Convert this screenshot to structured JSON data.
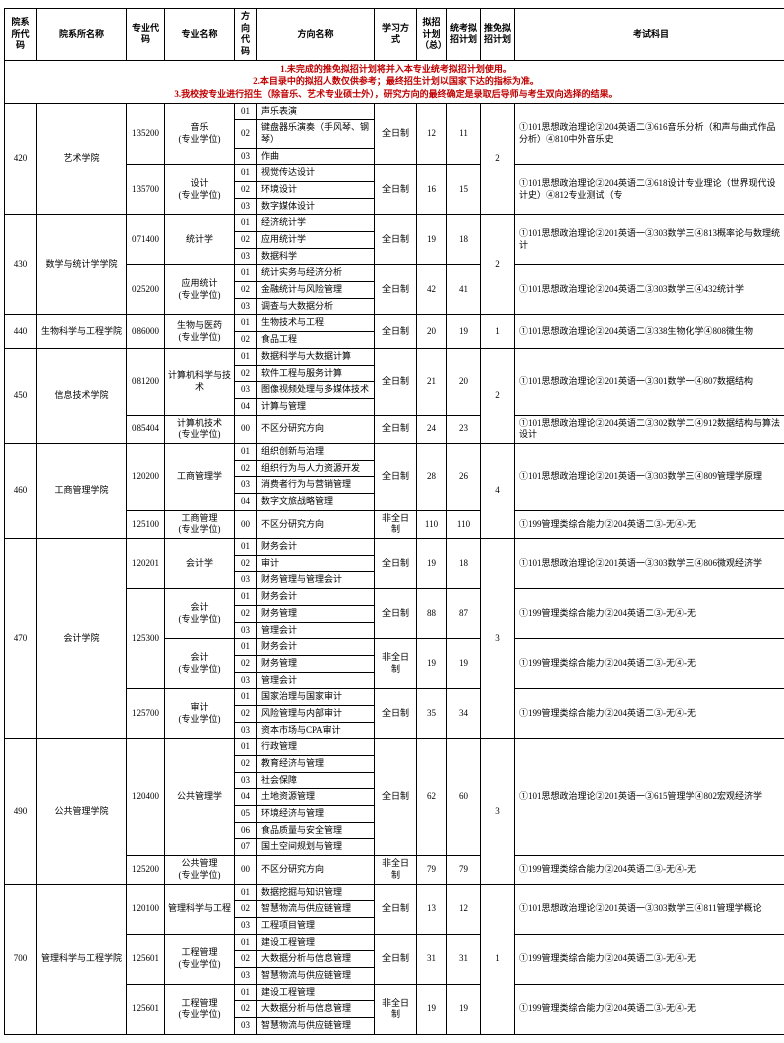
{
  "headers": {
    "h1": "院系所代码",
    "h2": "院系所名称",
    "h3": "专业代码",
    "h4": "专业名称",
    "h5": "方向代码",
    "h6": "方向名称",
    "h7": "学习方式",
    "h8": "拟招计划（总）",
    "h9": "统考拟招计划",
    "h10": "推免拟招计划",
    "h11": "考试科目"
  },
  "notes": {
    "n1": "1.未完成的推免拟招计划将并入本专业统考拟招计划使用。",
    "n2": "2.本目录中的拟招人数仅供参考；最终招生计划以国家下达的指标为准。",
    "n3": "3.我校按专业进行招生（除音乐、艺术专业硕士外），研究方向的最终确定是录取后导师与考生双向选择的结果。"
  },
  "d": {
    "r420": {
      "code": "420",
      "name": "艺术学院",
      "rec": "2",
      "m1": {
        "code": "135200",
        "name": "音乐\n(专业学位)",
        "mode": "全日制",
        "plan": "12",
        "plan2": "11",
        "exam": "①101思想政治理论②204英语二③616音乐分析（和声与曲式作品分析）④810中外音乐史",
        "d": [
          [
            "01",
            "声乐表演"
          ],
          [
            "02",
            "键盘器乐演奏（手风琴、钢琴）"
          ],
          [
            "03",
            "作曲"
          ]
        ]
      },
      "m2": {
        "code": "135700",
        "name": "设计\n(专业学位)",
        "mode": "全日制",
        "plan": "16",
        "plan2": "15",
        "exam": "①101思想政治理论②204英语二③618设计专业理论（世界现代设计史）④812专业测试（专",
        "d": [
          [
            "01",
            "视觉传达设计"
          ],
          [
            "02",
            "环境设计"
          ],
          [
            "03",
            "数字媒体设计"
          ]
        ]
      }
    },
    "r430": {
      "code": "430",
      "name": "数学与统计学学院",
      "rec": "2",
      "m1": {
        "code": "071400",
        "name": "统计学",
        "mode": "全日制",
        "plan": "19",
        "plan2": "18",
        "exam": "①101思想政治理论②201英语一③303数学三④813概率论与数理统计",
        "d": [
          [
            "01",
            "经济统计学"
          ],
          [
            "02",
            "应用统计学"
          ],
          [
            "03",
            "数据科学"
          ]
        ]
      },
      "m2": {
        "code": "025200",
        "name": "应用统计\n(专业学位)",
        "mode": "全日制",
        "plan": "42",
        "plan2": "41",
        "exam": "①101思想政治理论②204英语二③303数学三④432统计学",
        "d": [
          [
            "01",
            "统计实务与经济分析"
          ],
          [
            "02",
            "金融统计与风险管理"
          ],
          [
            "03",
            "调查与大数据分析"
          ]
        ]
      }
    },
    "r440": {
      "code": "440",
      "name": "生物科学与工程学院",
      "rec": "1",
      "m1": {
        "code": "086000",
        "name": "生物与医药\n(专业学位)",
        "mode": "全日制",
        "plan": "20",
        "plan2": "19",
        "exam": "①101思想政治理论②204英语二③338生物化学④808微生物",
        "d": [
          [
            "01",
            "生物技术与工程"
          ],
          [
            "02",
            "食品工程"
          ]
        ]
      }
    },
    "r450": {
      "code": "450",
      "name": "信息技术学院",
      "rec": "2",
      "m1": {
        "code": "081200",
        "name": "计算机科学与技术",
        "mode": "全日制",
        "plan": "21",
        "plan2": "20",
        "exam": "①101思想政治理论②201英语一③301数学一④807数据结构",
        "d": [
          [
            "01",
            "数据科学与大数据计算"
          ],
          [
            "02",
            "软件工程与服务计算"
          ],
          [
            "03",
            "图像视频处理与多媒体技术"
          ],
          [
            "04",
            "计算与管理"
          ]
        ]
      },
      "m2": {
        "code": "085404",
        "name": "计算机技术\n(专业学位)",
        "mode": "全日制",
        "plan": "24",
        "plan2": "23",
        "exam": "①101思想政治理论②204英语二③302数学二④912数据结构与算法设计",
        "d": [
          [
            "00",
            "不区分研究方向"
          ]
        ]
      }
    },
    "r460": {
      "code": "460",
      "name": "工商管理学院",
      "rec": "4",
      "m1": {
        "code": "120200",
        "name": "工商管理学",
        "mode": "全日制",
        "plan": "28",
        "plan2": "26",
        "exam": "①101思想政治理论②201英语一③303数学三④809管理学原理",
        "d": [
          [
            "01",
            "组织创新与治理"
          ],
          [
            "02",
            "组织行为与人力资源开发"
          ],
          [
            "03",
            "消费者行为与营销管理"
          ],
          [
            "04",
            "数字文旅战略管理"
          ]
        ]
      },
      "m2": {
        "code": "125100",
        "name": "工商管理\n(专业学位)",
        "mode": "非全日制",
        "plan": "110",
        "plan2": "110",
        "exam": "①199管理类综合能力②204英语二③-无④-无",
        "d": [
          [
            "00",
            "不区分研究方向"
          ]
        ]
      }
    },
    "r470": {
      "code": "470",
      "name": "会计学院",
      "rec": "3",
      "m1": {
        "code": "120201",
        "name": "会计学",
        "mode": "全日制",
        "plan": "19",
        "plan2": "18",
        "exam": "①101思想政治理论②201英语一③303数学三④806微观经济学",
        "d": [
          [
            "01",
            "财务会计"
          ],
          [
            "02",
            "审计"
          ],
          [
            "03",
            "财务管理与管理会计"
          ]
        ]
      },
      "m2": {
        "code": "125300",
        "name": "会计\n(专业学位)",
        "mode": "全日制",
        "plan": "88",
        "plan2": "87",
        "exam": "①199管理类综合能力②204英语二③-无④-无",
        "d": [
          [
            "01",
            "财务会计"
          ],
          [
            "02",
            "财务管理"
          ],
          [
            "03",
            "管理会计"
          ]
        ]
      },
      "m3": {
        "code": "",
        "name": "会计\n(专业学位)",
        "mode": "非全日制",
        "plan": "19",
        "plan2": "19",
        "exam": "①199管理类综合能力②204英语二③-无④-无",
        "d": [
          [
            "01",
            "财务会计"
          ],
          [
            "02",
            "财务管理"
          ],
          [
            "03",
            "管理会计"
          ]
        ]
      },
      "m4": {
        "code": "125700",
        "name": "审计\n(专业学位)",
        "mode": "全日制",
        "plan": "35",
        "plan2": "34",
        "exam": "①199管理类综合能力②204英语二③-无④-无",
        "d": [
          [
            "01",
            "国家治理与国家审计"
          ],
          [
            "02",
            "风险管理与内部审计"
          ],
          [
            "03",
            "资本市场与CPA审计"
          ]
        ]
      }
    },
    "r490": {
      "code": "490",
      "name": "公共管理学院",
      "rec": "3",
      "m1": {
        "code": "120400",
        "name": "公共管理学",
        "mode": "全日制",
        "plan": "62",
        "plan2": "60",
        "exam": "①101思想政治理论②201英语一③615管理学④802宏观经济学",
        "d": [
          [
            "01",
            "行政管理"
          ],
          [
            "02",
            "教育经济与管理"
          ],
          [
            "03",
            "社会保障"
          ],
          [
            "04",
            "土地资源管理"
          ],
          [
            "05",
            "环境经济与管理"
          ],
          [
            "06",
            "食品质量与安全管理"
          ],
          [
            "07",
            "国土空间规划与管理"
          ]
        ]
      },
      "m2": {
        "code": "125200",
        "name": "公共管理\n(专业学位)",
        "mode": "非全日制",
        "plan": "79",
        "plan2": "79",
        "exam": "①199管理类综合能力②204英语二③-无④-无",
        "d": [
          [
            "00",
            "不区分研究方向"
          ]
        ]
      }
    },
    "r700": {
      "code": "700",
      "name": "管理科学与工程学院",
      "rec": "1",
      "m1": {
        "code": "120100",
        "name": "管理科学与工程",
        "mode": "全日制",
        "plan": "13",
        "plan2": "12",
        "exam": "①101思想政治理论②201英语一③303数学三④811管理学概论",
        "d": [
          [
            "01",
            "数据挖掘与知识管理"
          ],
          [
            "02",
            "智慧物流与供应链管理"
          ],
          [
            "03",
            "工程项目管理"
          ]
        ]
      },
      "m2": {
        "code": "125601",
        "name": "工程管理\n(专业学位)",
        "mode": "全日制",
        "plan": "31",
        "plan2": "31",
        "exam": "①199管理类综合能力②204英语二③-无④-无",
        "d": [
          [
            "01",
            "建设工程管理"
          ],
          [
            "02",
            "大数据分析与信息管理"
          ],
          [
            "03",
            "智慧物流与供应链管理"
          ]
        ]
      },
      "m3": {
        "code": "125601",
        "name": "工程管理\n(专业学位)",
        "mode": "非全日制",
        "plan": "19",
        "plan2": "19",
        "exam": "①199管理类综合能力②204英语二③-无④-无",
        "d": [
          [
            "01",
            "建设工程管理"
          ],
          [
            "02",
            "大数据分析与信息管理"
          ],
          [
            "03",
            "智慧物流与供应链管理"
          ]
        ]
      }
    }
  }
}
